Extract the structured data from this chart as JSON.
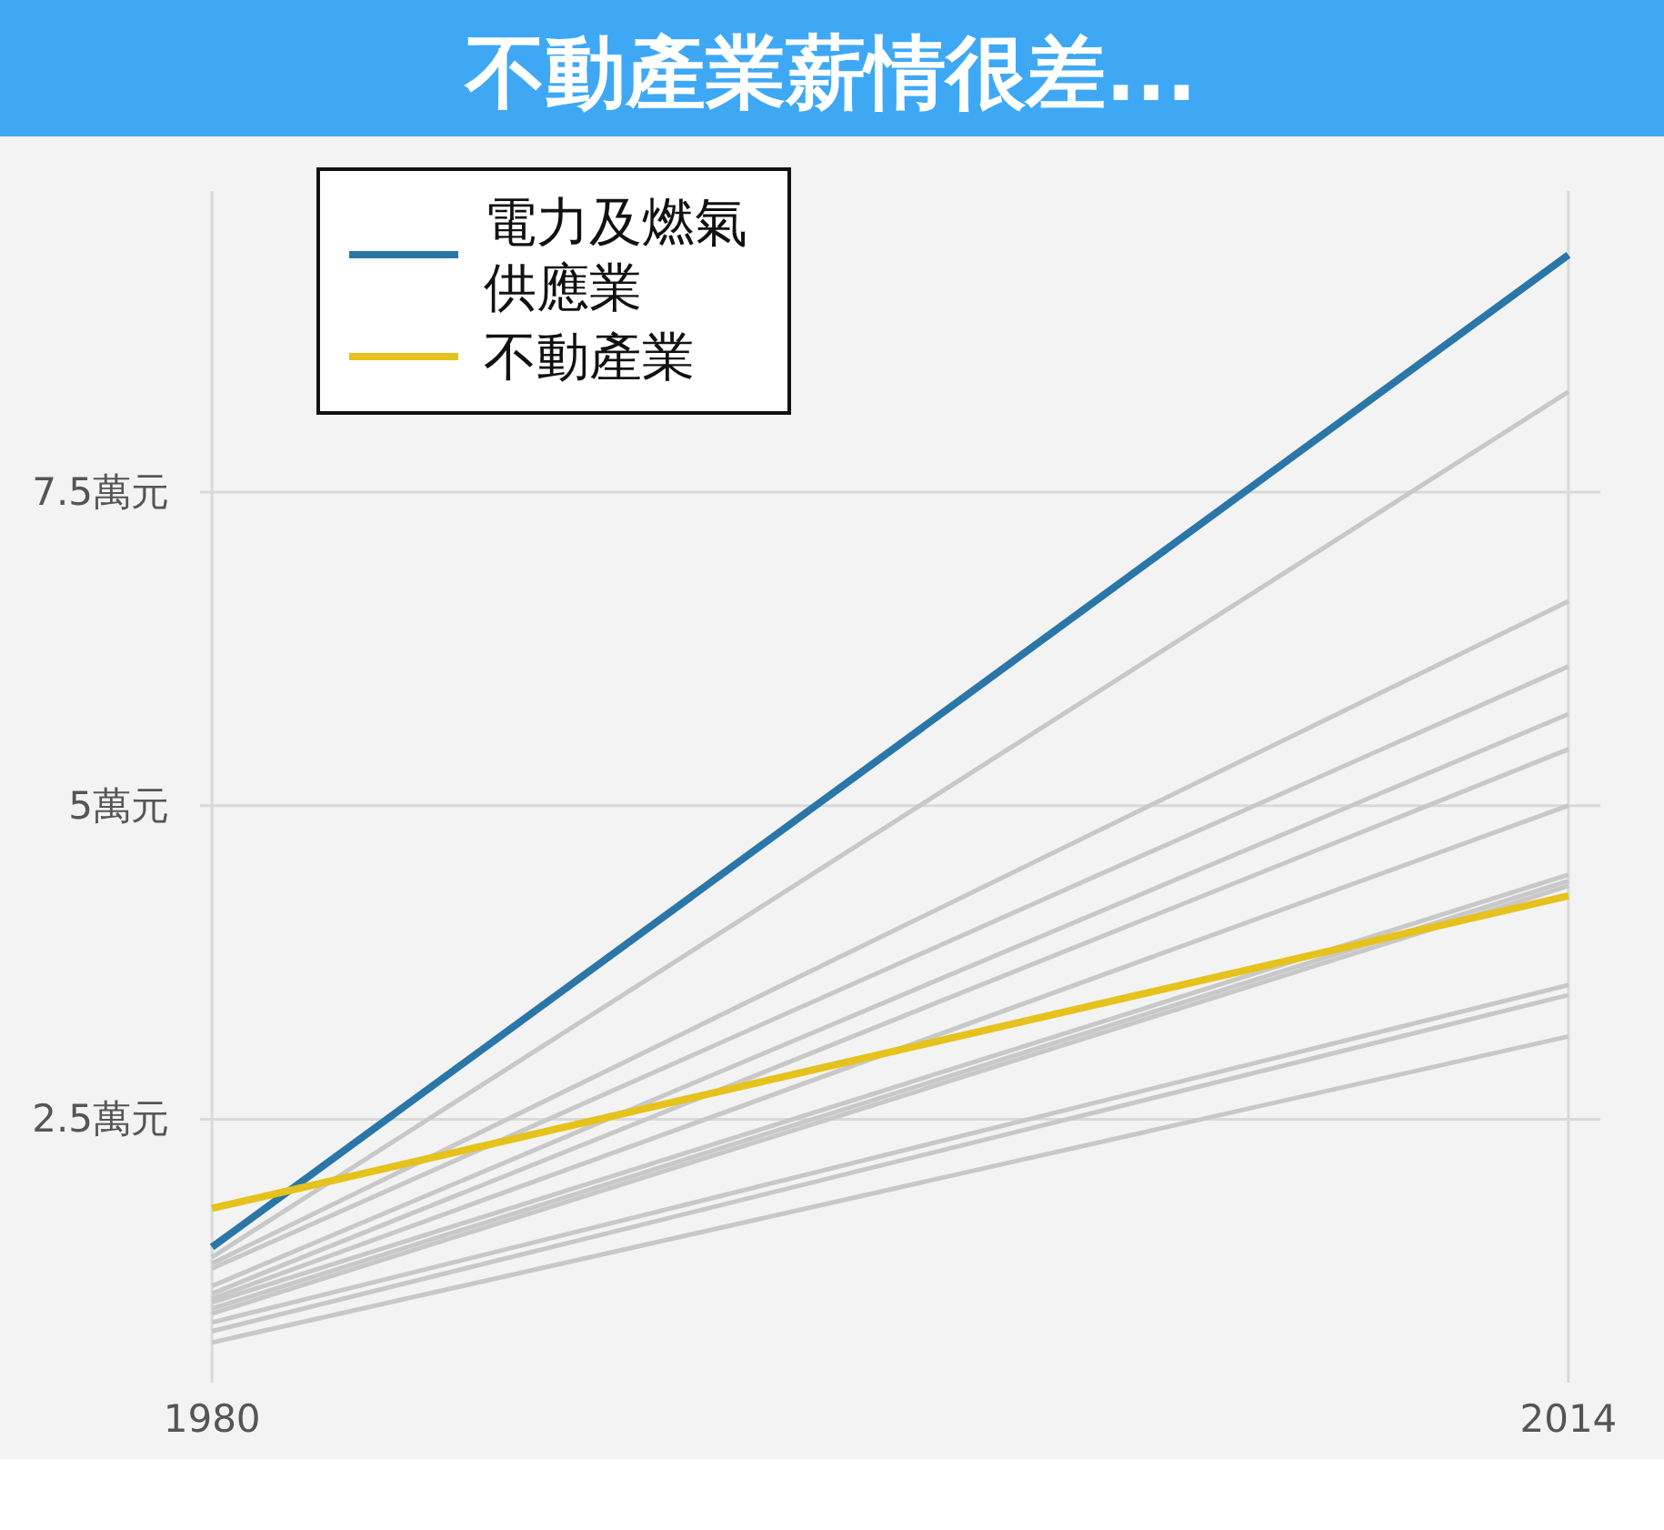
{
  "chart_data": {
    "type": "line",
    "title": "不動產業薪情很差...",
    "x": [
      1980,
      2014
    ],
    "xlim": [
      1979.7,
      2014.8
    ],
    "xticks": [
      1980,
      2014
    ],
    "ylim": [
      0.4,
      9.9
    ],
    "yticks": [
      {
        "value": 2.5,
        "label": "2.5萬元"
      },
      {
        "value": 5,
        "label": "5萬元"
      },
      {
        "value": 7.5,
        "label": "7.5萬元"
      }
    ],
    "grid": true,
    "legend": "top left",
    "series": [
      {
        "color": "#c8c8c8",
        "values": [
          1.4,
          8.3
        ]
      },
      {
        "color": "#c8c8c8",
        "values": [
          1.35,
          6.63
        ]
      },
      {
        "color": "#c8c8c8",
        "values": [
          1.31,
          6.11
        ]
      },
      {
        "color": "#c8c8c8",
        "values": [
          1.17,
          5.73
        ]
      },
      {
        "color": "#c8c8c8",
        "values": [
          1.11,
          5.45
        ]
      },
      {
        "color": "#c8c8c8",
        "values": [
          1.07,
          5.0
        ]
      },
      {
        "color": "#c8c8c8",
        "values": [
          1.04,
          4.45
        ]
      },
      {
        "color": "#c8c8c8",
        "values": [
          0.99,
          4.4
        ]
      },
      {
        "color": "#c8c8c8",
        "values": [
          0.95,
          4.36
        ]
      },
      {
        "color": "#c8c8c8",
        "values": [
          0.88,
          3.57
        ]
      },
      {
        "color": "#c8c8c8",
        "values": [
          0.81,
          3.49
        ]
      },
      {
        "color": "#c8c8c8",
        "values": [
          0.72,
          3.16
        ]
      },
      {
        "name": "電力及燃氣供應業",
        "color": "#2a76a8",
        "values": [
          1.48,
          9.39
        ]
      },
      {
        "name": "不動產業",
        "color": "#e5c21c",
        "values": [
          1.79,
          4.28
        ]
      }
    ]
  }
}
